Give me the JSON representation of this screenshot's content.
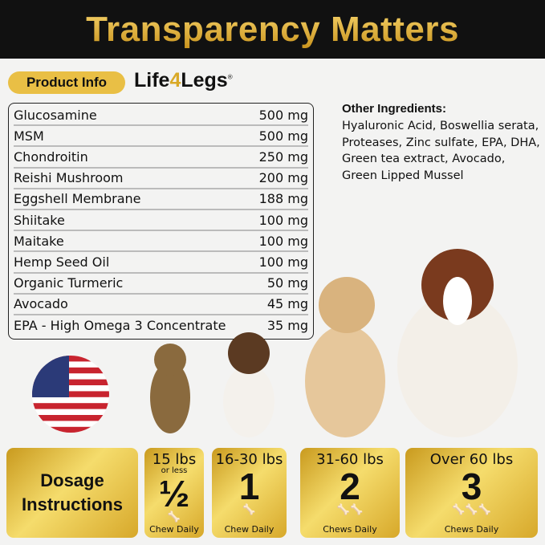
{
  "header": {
    "title": "Transparency Matters"
  },
  "product_info_label": "Product Info",
  "logo": {
    "text_before": "Life",
    "text_four": "4",
    "text_after": "Legs",
    "mark": "®"
  },
  "ingredients": [
    {
      "name": "Glucosamine",
      "amount": "500 mg"
    },
    {
      "name": "MSM",
      "amount": "500 mg"
    },
    {
      "name": "Chondroitin",
      "amount": "250 mg"
    },
    {
      "name": "Reishi Mushroom",
      "amount": "200 mg"
    },
    {
      "name": "Eggshell Membrane",
      "amount": "188 mg"
    },
    {
      "name": "Shiitake",
      "amount": "100 mg"
    },
    {
      "name": "Maitake",
      "amount": "100 mg"
    },
    {
      "name": "Hemp Seed Oil",
      "amount": "100 mg"
    },
    {
      "name": "Organic Turmeric",
      "amount": "50 mg"
    },
    {
      "name": "Avocado",
      "amount": "45 mg"
    },
    {
      "name": "EPA - High Omega 3 Concentrate",
      "amount": "35 mg"
    }
  ],
  "other_ingredients": {
    "title": "Other Ingredients:",
    "text": "Hyaluronic Acid, Boswellia serata, Proteases, Zinc sulfate, EPA, DHA, Green tea extract, Avocado, Green Lipped Mussel"
  },
  "dosage": {
    "title_line1": "Dosage",
    "title_line2": "Instructions",
    "tiers": [
      {
        "range": "15 lbs",
        "sub": "or less",
        "amount": "½",
        "bones": "🦴",
        "label": "Chew Daily"
      },
      {
        "range": "16-30 lbs",
        "amount": "1",
        "bones": "🦴",
        "label": "Chew Daily"
      },
      {
        "range": "31-60 lbs",
        "amount": "2",
        "bones": "🦴🦴",
        "label": "Chews Daily"
      },
      {
        "range": "Over 60 lbs",
        "amount": "3",
        "bones": "🦴🦴🦴",
        "label": "Chews Daily"
      }
    ]
  },
  "colors": {
    "gold": "#e9bf45",
    "header_bg": "#111111"
  }
}
